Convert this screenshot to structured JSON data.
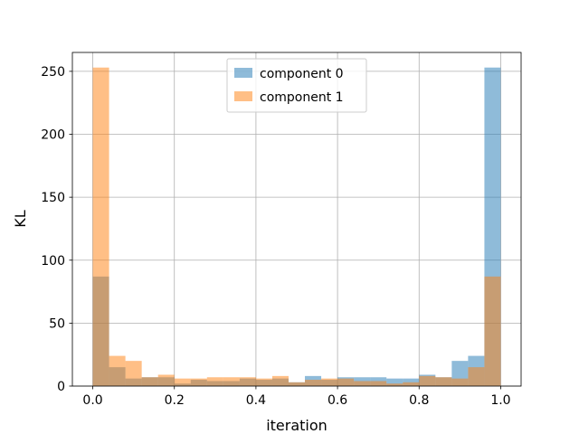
{
  "chart_data": {
    "type": "bar",
    "subtype": "overlapping-histogram",
    "title": "",
    "xlabel": "iteration",
    "ylabel": "KL",
    "xlim": [
      -0.05,
      1.05
    ],
    "ylim": [
      0,
      265
    ],
    "xticks": [
      0.0,
      0.2,
      0.4,
      0.6,
      0.8,
      1.0
    ],
    "xtick_labels": [
      "0.0",
      "0.2",
      "0.4",
      "0.6",
      "0.8",
      "1.0"
    ],
    "yticks": [
      0,
      50,
      100,
      150,
      200,
      250
    ],
    "ytick_labels": [
      "0",
      "50",
      "100",
      "150",
      "200",
      "250"
    ],
    "grid": true,
    "legend_position": "top-center",
    "bin_edges": [
      0.0,
      0.04,
      0.08,
      0.12,
      0.16,
      0.2,
      0.24,
      0.28,
      0.32,
      0.36,
      0.4,
      0.44,
      0.48,
      0.52,
      0.56,
      0.6,
      0.64,
      0.68,
      0.72,
      0.76,
      0.8,
      0.84,
      0.88,
      0.92,
      0.96,
      1.0
    ],
    "series": [
      {
        "name": "component 0",
        "color": "#1f77b4",
        "alpha": 0.5,
        "values": [
          87,
          15,
          6,
          7,
          7,
          2,
          5,
          4,
          4,
          6,
          5,
          6,
          3,
          8,
          5,
          7,
          7,
          7,
          6,
          6,
          9,
          7,
          20,
          24,
          253
        ]
      },
      {
        "name": "component 1",
        "color": "#ff7f0e",
        "alpha": 0.5,
        "values": [
          253,
          24,
          20,
          7,
          9,
          6,
          6,
          7,
          7,
          7,
          6,
          8,
          3,
          5,
          6,
          6,
          4,
          4,
          2,
          3,
          8,
          7,
          6,
          15,
          87
        ]
      }
    ]
  }
}
